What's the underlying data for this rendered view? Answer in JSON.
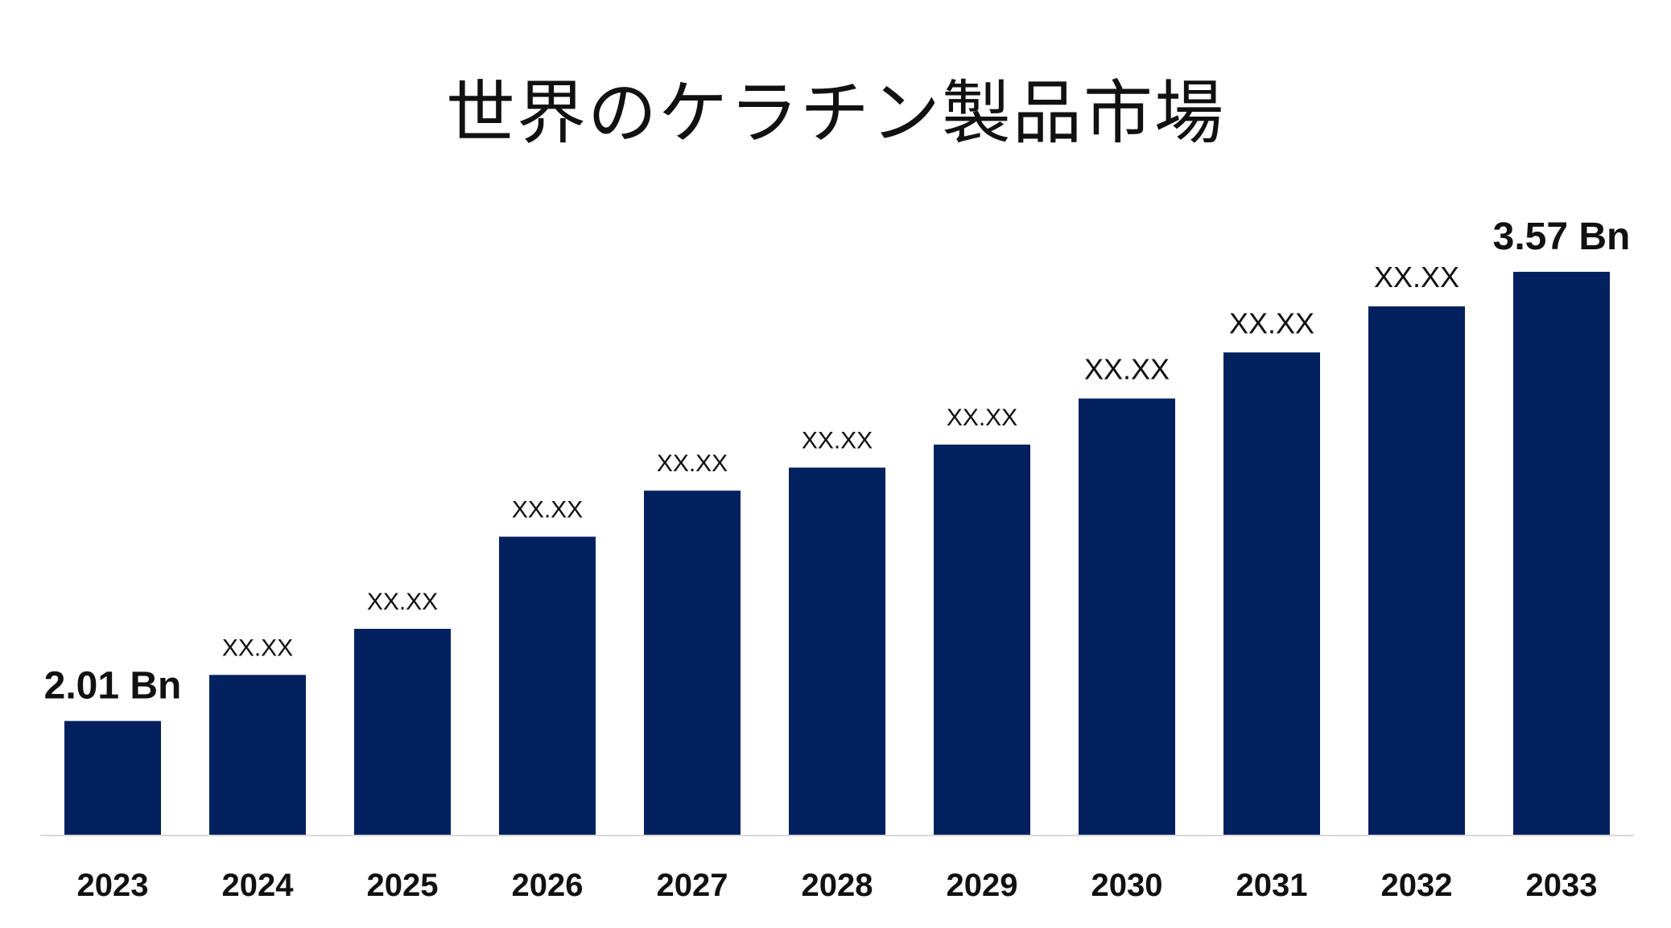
{
  "chart_data": {
    "type": "bar",
    "title": "世界のケラチン製品市場",
    "xlabel": "",
    "ylabel": "",
    "categories": [
      "2023",
      "2024",
      "2025",
      "2026",
      "2027",
      "2028",
      "2029",
      "2030",
      "2031",
      "2032",
      "2033"
    ],
    "values": [
      2.01,
      2.17,
      2.33,
      2.65,
      2.81,
      2.89,
      2.97,
      3.13,
      3.29,
      3.45,
      3.57
    ],
    "data_labels": [
      "2.01 Bn",
      "XX.XX",
      "XX.XX",
      "XX.XX",
      "XX.XX",
      "XX.XX",
      "XX.XX",
      "XX.XX",
      "XX.XX",
      "XX.XX",
      "3.57 Bn"
    ],
    "emphasized_labels": [
      true,
      false,
      false,
      false,
      false,
      false,
      false,
      false,
      false,
      false,
      true
    ],
    "ylim": [
      1.615,
      3.57
    ],
    "grid": false,
    "legend": "none",
    "bar_color": "#03215f",
    "axis_color": "#d9d9d9"
  }
}
